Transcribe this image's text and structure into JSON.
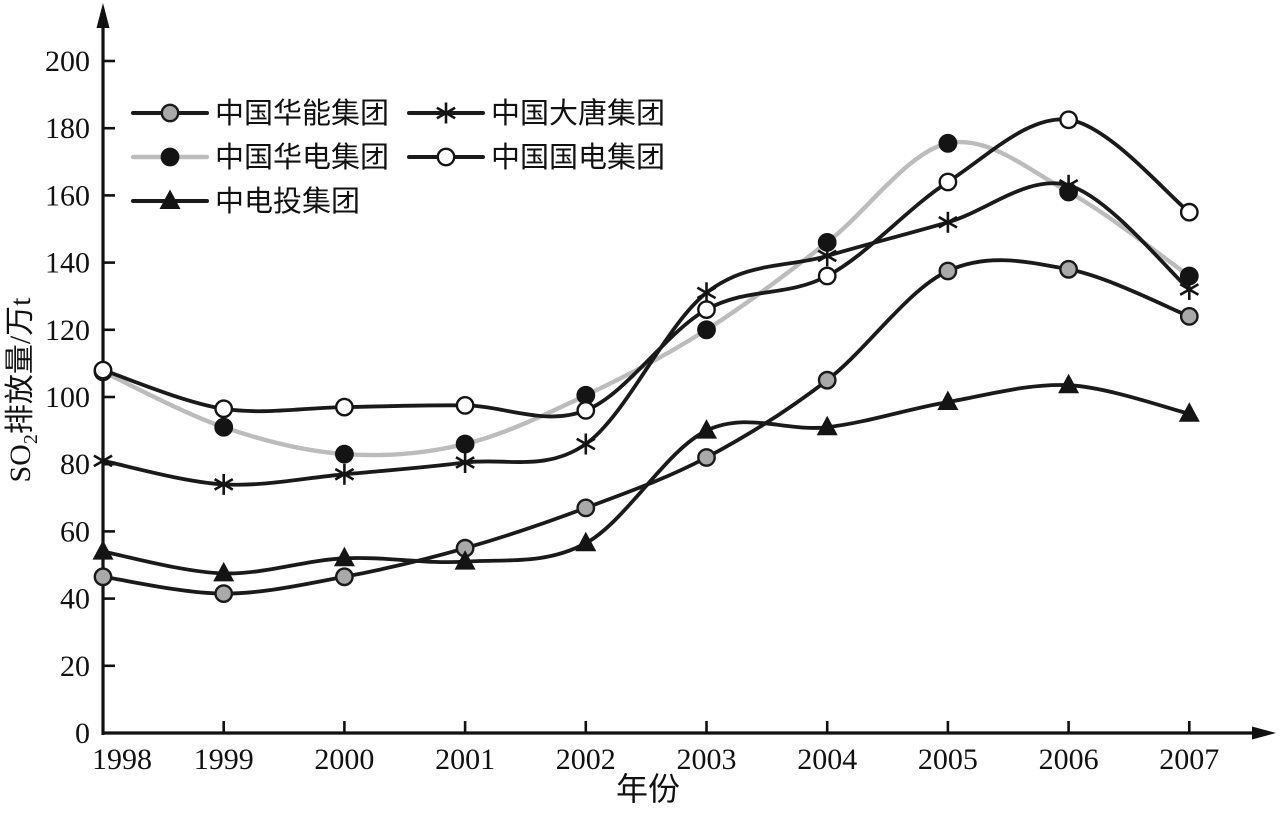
{
  "chart_data": {
    "type": "line",
    "title": "",
    "xlabel": "年份",
    "ylabel": "SO₂排放量/万t",
    "ylabel_parts": {
      "prefix": "SO",
      "subscript": "2",
      "suffix": "排放量/万t"
    },
    "x": [
      1998,
      1999,
      2000,
      2001,
      2002,
      2003,
      2004,
      2005,
      2006,
      2007
    ],
    "x_tick_labels": [
      "1998",
      "1999",
      "2000",
      "2001",
      "2002",
      "2003",
      "2004",
      "2005",
      "2006",
      "2007"
    ],
    "y_ticks": [
      0,
      20,
      40,
      60,
      80,
      100,
      120,
      140,
      160,
      180,
      200
    ],
    "y_tick_labels": [
      "0",
      "20",
      "40",
      "60",
      "80",
      "100",
      "120",
      "140",
      "160",
      "180",
      "200"
    ],
    "ylim": [
      0,
      200
    ],
    "grid": false,
    "legend_position": "upper-left-inside",
    "legend_columns": 2,
    "legend_order": [
      "huaneng",
      "datang",
      "huadian",
      "guodian",
      "zhongdiantou"
    ],
    "axis_color": "#111111",
    "background": "#ffffff",
    "series": [
      {
        "id": "huaneng",
        "name": "中国华能集团",
        "marker": "filled-circle-gray",
        "line_color": "#1a1a1a",
        "marker_fill": "#a9a9a9",
        "marker_edge": "#1a1a1a",
        "values": [
          46.5,
          41.5,
          46.5,
          55,
          67,
          82,
          105,
          137.5,
          138,
          124
        ]
      },
      {
        "id": "huadian",
        "name": "中国华电集团",
        "marker": "filled-circle-black",
        "line_color": "#bcbcbc",
        "marker_fill": "#141414",
        "marker_edge": "#141414",
        "values": [
          107.5,
          91,
          83,
          86,
          100.5,
          120,
          146,
          175.5,
          161,
          136
        ]
      },
      {
        "id": "zhongdiantou",
        "name": "中电投集团",
        "marker": "filled-triangle",
        "line_color": "#1a1a1a",
        "marker_fill": "#141414",
        "marker_edge": "#141414",
        "values": [
          54,
          47.5,
          52,
          51,
          56.5,
          90,
          91,
          98.5,
          103.5,
          95
        ]
      },
      {
        "id": "datang",
        "name": "中国大唐集团",
        "marker": "asterisk",
        "line_color": "#1a1a1a",
        "marker_fill": "none",
        "marker_edge": "#141414",
        "values": [
          81,
          74,
          77,
          80.5,
          86,
          131,
          142,
          152,
          163,
          132
        ]
      },
      {
        "id": "guodian",
        "name": "中国国电集团",
        "marker": "open-circle",
        "line_color": "#1a1a1a",
        "marker_fill": "#ffffff",
        "marker_edge": "#141414",
        "values": [
          108,
          96.5,
          97,
          97.5,
          96,
          126,
          136,
          164,
          182.5,
          155
        ]
      }
    ]
  }
}
